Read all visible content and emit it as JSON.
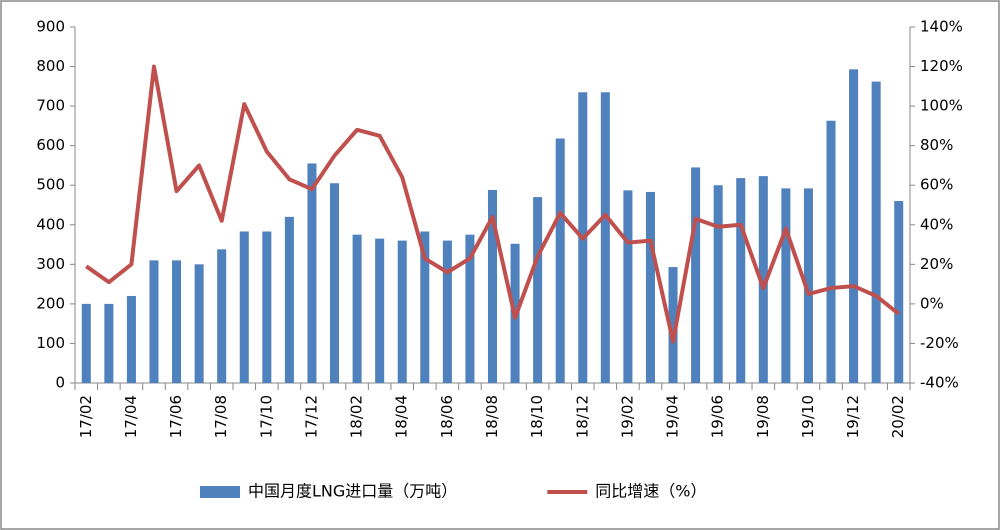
{
  "chart_data": {
    "type": "bar_line",
    "categories": [
      "17/02",
      null,
      "17/04",
      null,
      "17/06",
      null,
      "17/08",
      null,
      "17/10",
      null,
      "17/12",
      null,
      "18/02",
      null,
      "18/04",
      null,
      "18/06",
      null,
      "18/08",
      null,
      "18/10",
      null,
      "18/12",
      null,
      "19/02",
      null,
      "19/04",
      null,
      "19/06",
      null,
      "19/08",
      null,
      "19/10",
      null,
      "19/12",
      null,
      "20/02"
    ],
    "series": [
      {
        "name": "中国月度LNG进口量（万吨）",
        "type": "bar",
        "color": "#4f81bd",
        "values": [
          200,
          200,
          220,
          310,
          310,
          300,
          338,
          383,
          383,
          420,
          555,
          505,
          375,
          365,
          360,
          383,
          360,
          375,
          488,
          352,
          470,
          618,
          735,
          735,
          487,
          483,
          293,
          545,
          500,
          518,
          523,
          492,
          492,
          663,
          793,
          762,
          460
        ]
      },
      {
        "name": "同比增速（%）",
        "type": "line",
        "axis": "y2",
        "color": "#c0504d",
        "values": [
          19,
          11,
          20,
          120,
          57,
          70,
          42,
          101,
          77,
          63,
          58,
          75,
          88,
          85,
          64,
          23,
          16,
          23,
          44,
          -7,
          24,
          46,
          33,
          45,
          31,
          32,
          -19,
          43,
          39,
          40,
          8,
          38,
          5,
          8,
          9,
          4,
          -5
        ]
      }
    ],
    "ylim": [
      0,
      900
    ],
    "yticks": [
      0,
      100,
      200,
      300,
      400,
      500,
      600,
      700,
      800,
      900
    ],
    "y2lim": [
      -40,
      140
    ],
    "y2ticks": [
      {
        "value": -40,
        "label": "-40%"
      },
      {
        "value": -20,
        "label": "-20%"
      },
      {
        "value": 0,
        "label": "0%"
      },
      {
        "value": 20,
        "label": "20%"
      },
      {
        "value": 40,
        "label": "40%"
      },
      {
        "value": 60,
        "label": "60%"
      },
      {
        "value": 80,
        "label": "80%"
      },
      {
        "value": 100,
        "label": "100%"
      },
      {
        "value": 120,
        "label": "120%"
      },
      {
        "value": 140,
        "label": "140%"
      }
    ],
    "legend": "bottom"
  }
}
